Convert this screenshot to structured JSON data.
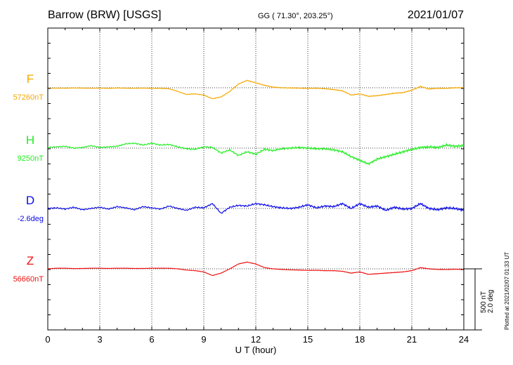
{
  "header": {
    "station": "Barrow (BRW)  [USGS]",
    "coords": "GG ( 71.30°, 203.25°)",
    "date": "2021/01/07"
  },
  "footer": {
    "stamp": "Plotted at 2021/02/07 01:33 UT"
  },
  "scale": {
    "nt": "500 nT",
    "deg": "2.0 deg"
  },
  "chart_data": {
    "type": "line",
    "title": "Barrow (BRW)  [USGS]",
    "xlabel": "U T (hour)",
    "ylabel": "",
    "xlim": [
      0,
      24
    ],
    "x_ticks": [
      "0",
      "3",
      "6",
      "9",
      "12",
      "15",
      "18",
      "21",
      "24"
    ],
    "grid": true,
    "series": [
      {
        "name": "F",
        "baseline": "57260nT",
        "color": "#f5a800",
        "x": [
          0,
          0.5,
          1,
          1.5,
          2,
          2.5,
          3,
          3.5,
          4,
          4.5,
          5,
          5.5,
          6,
          6.5,
          7,
          7.5,
          8,
          8.5,
          9,
          9.5,
          10,
          10.5,
          11,
          11.5,
          12,
          12.5,
          13,
          13.5,
          14,
          14.5,
          15,
          15.5,
          16,
          16.5,
          17,
          17.5,
          18,
          18.5,
          19,
          19.5,
          20,
          20.5,
          21,
          21.5,
          22,
          22.5,
          23,
          23.5,
          24
        ],
        "values": [
          -5,
          -3,
          -4,
          -2,
          -3,
          -4,
          -3,
          -5,
          -2,
          -4,
          -4,
          -3,
          -5,
          -5,
          -8,
          -30,
          -55,
          -50,
          -60,
          -90,
          -75,
          -30,
          30,
          60,
          40,
          20,
          5,
          0,
          -2,
          -3,
          -5,
          -4,
          -8,
          -15,
          -25,
          -60,
          -50,
          -70,
          -65,
          -55,
          -45,
          -40,
          -20,
          10,
          -10,
          -5,
          -5,
          0,
          0
        ]
      },
      {
        "name": "H",
        "baseline": "9250nT",
        "color": "#22ee22",
        "x": [
          0,
          0.5,
          1,
          1.5,
          2,
          2.5,
          3,
          3.5,
          4,
          4.5,
          5,
          5.5,
          6,
          6.5,
          7,
          7.5,
          8,
          8.5,
          9,
          9.5,
          10,
          10.5,
          11,
          11.5,
          12,
          12.5,
          13,
          13.5,
          14,
          14.5,
          15,
          15.5,
          16,
          16.5,
          17,
          17.5,
          18,
          18.5,
          19,
          19.5,
          20,
          20.5,
          21,
          21.5,
          22,
          22.5,
          23,
          23.5,
          24
        ],
        "values": [
          5,
          10,
          15,
          0,
          5,
          20,
          5,
          10,
          15,
          35,
          40,
          25,
          40,
          25,
          30,
          10,
          -5,
          -10,
          10,
          5,
          -40,
          -15,
          -60,
          -30,
          -50,
          -10,
          -20,
          -5,
          0,
          5,
          0,
          -5,
          -5,
          -15,
          -30,
          -70,
          -100,
          -130,
          -90,
          -70,
          -50,
          -30,
          -10,
          5,
          10,
          5,
          25,
          15,
          20
        ]
      },
      {
        "name": "D",
        "baseline": "-2.6deg",
        "color": "#0a0ae8",
        "x": [
          0,
          0.5,
          1,
          1.5,
          2,
          2.5,
          3,
          3.5,
          4,
          4.5,
          5,
          5.5,
          6,
          6.5,
          7,
          7.5,
          8,
          8.5,
          9,
          9.5,
          10,
          10.5,
          11,
          11.5,
          12,
          12.5,
          13,
          13.5,
          14,
          14.5,
          15,
          15.5,
          16,
          16.5,
          17,
          17.5,
          18,
          18.5,
          19,
          19.5,
          20,
          20.5,
          21,
          21.5,
          22,
          22.5,
          23,
          23.5,
          24
        ],
        "values": [
          0,
          5,
          -5,
          10,
          -10,
          0,
          10,
          -5,
          15,
          5,
          -10,
          15,
          5,
          -5,
          20,
          0,
          -15,
          10,
          5,
          40,
          -40,
          10,
          25,
          20,
          40,
          30,
          15,
          5,
          0,
          10,
          30,
          5,
          20,
          15,
          40,
          0,
          40,
          10,
          20,
          -15,
          10,
          -5,
          0,
          40,
          0,
          -10,
          5,
          0,
          -15
        ]
      },
      {
        "name": "Z",
        "baseline": "56660nT",
        "color": "#ee1111",
        "x": [
          0,
          0.5,
          1,
          1.5,
          2,
          2.5,
          3,
          3.5,
          4,
          4.5,
          5,
          5.5,
          6,
          6.5,
          7,
          7.5,
          8,
          8.5,
          9,
          9.5,
          10,
          10.5,
          11,
          11.5,
          12,
          12.5,
          13,
          13.5,
          14,
          14.5,
          15,
          15.5,
          16,
          16.5,
          17,
          17.5,
          18,
          18.5,
          19,
          19.5,
          20,
          20.5,
          21,
          21.5,
          22,
          22.5,
          23,
          23.5,
          24
        ],
        "values": [
          0,
          5,
          5,
          2,
          3,
          5,
          5,
          3,
          5,
          5,
          3,
          3,
          5,
          5,
          5,
          0,
          -10,
          -15,
          -25,
          -55,
          -35,
          0,
          40,
          55,
          40,
          10,
          0,
          -5,
          -8,
          -10,
          -12,
          -12,
          -15,
          -15,
          -20,
          -35,
          -25,
          -45,
          -40,
          -35,
          -30,
          -25,
          -15,
          10,
          0,
          -5,
          -5,
          -3,
          -5
        ]
      }
    ]
  }
}
